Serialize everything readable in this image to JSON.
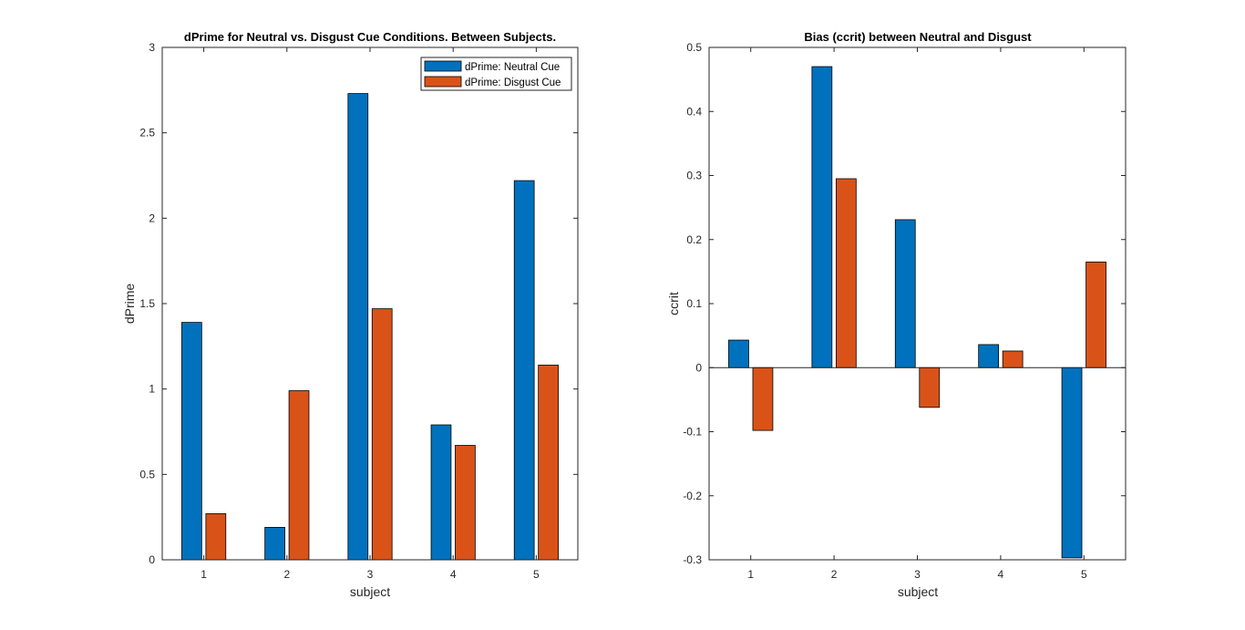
{
  "chart_data": [
    {
      "type": "bar",
      "title": "dPrime for Neutral vs. Disgust Cue Conditions. Between Subjects.",
      "xlabel": "subject",
      "ylabel": "dPrime",
      "categories": [
        "1",
        "2",
        "3",
        "4",
        "5"
      ],
      "series": [
        {
          "name": "dPrime: Neutral Cue",
          "color": "#0072BD",
          "values": [
            1.39,
            0.19,
            2.73,
            0.79,
            2.22
          ]
        },
        {
          "name": "dPrime: Disgust Cue",
          "color": "#D95319",
          "values": [
            0.27,
            0.99,
            1.47,
            0.67,
            1.14
          ]
        }
      ],
      "ylim": [
        0,
        3
      ],
      "yticks": [
        0,
        0.5,
        1,
        1.5,
        2,
        2.5,
        3
      ],
      "ytick_labels": [
        "0",
        "0.5",
        "1",
        "1.5",
        "2",
        "2.5",
        "3"
      ],
      "grid": false,
      "legend": "top-right"
    },
    {
      "type": "bar",
      "title": "Bias (ccrit) between Neutral and Disgust",
      "xlabel": "subject",
      "ylabel": "ccrit",
      "categories": [
        "1",
        "2",
        "3",
        "4",
        "5"
      ],
      "series": [
        {
          "color": "#0072BD",
          "values": [
            0.043,
            0.47,
            0.231,
            0.036,
            -0.297
          ]
        },
        {
          "color": "#D95319",
          "values": [
            -0.098,
            0.295,
            -0.062,
            0.026,
            0.165
          ]
        }
      ],
      "ylim": [
        -0.3,
        0.5
      ],
      "yticks": [
        -0.3,
        -0.2,
        -0.1,
        0,
        0.1,
        0.2,
        0.3,
        0.4,
        0.5
      ],
      "ytick_labels": [
        "-0.3",
        "-0.2",
        "-0.1",
        "0",
        "0.1",
        "0.2",
        "0.3",
        "0.4",
        "0.5"
      ],
      "grid": false,
      "legend": "none"
    }
  ]
}
